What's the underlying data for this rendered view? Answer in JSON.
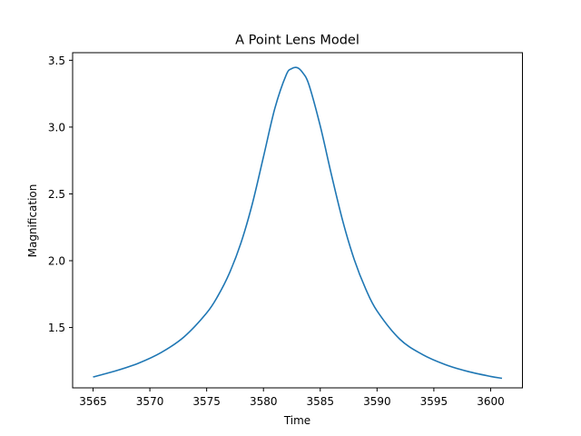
{
  "chart_data": {
    "type": "line",
    "title": "A Point Lens Model",
    "xlabel": "Time",
    "ylabel": "Magnification",
    "xlim": [
      3563.2,
      3602.8
    ],
    "ylim": [
      1.0484,
      3.5568
    ],
    "xticks": [
      3565,
      3570,
      3575,
      3580,
      3585,
      3590,
      3595,
      3600
    ],
    "yticks": [
      1.5,
      2.0,
      2.5,
      3.0,
      3.5
    ],
    "ytick_labels": [
      "1.5",
      "2.0",
      "2.5",
      "3.0",
      "3.5"
    ],
    "grid": false,
    "color": "#1f77b4",
    "series": [
      {
        "x": [
          3565,
          3567,
          3569,
          3571,
          3573,
          3575,
          3576,
          3577,
          3578,
          3579,
          3580,
          3581,
          3582,
          3582.5,
          3583,
          3583.5,
          3584,
          3585,
          3586,
          3587,
          3588,
          3589,
          3590,
          3592,
          3594,
          3596,
          3598,
          3600,
          3601
        ],
        "y": [
          1.13,
          1.176,
          1.233,
          1.313,
          1.429,
          1.609,
          1.738,
          1.906,
          2.128,
          2.419,
          2.777,
          3.139,
          3.39,
          3.438,
          3.444,
          3.402,
          3.318,
          3.008,
          2.638,
          2.291,
          2.007,
          1.789,
          1.624,
          1.413,
          1.298,
          1.223,
          1.171,
          1.134,
          1.12
        ]
      }
    ]
  }
}
